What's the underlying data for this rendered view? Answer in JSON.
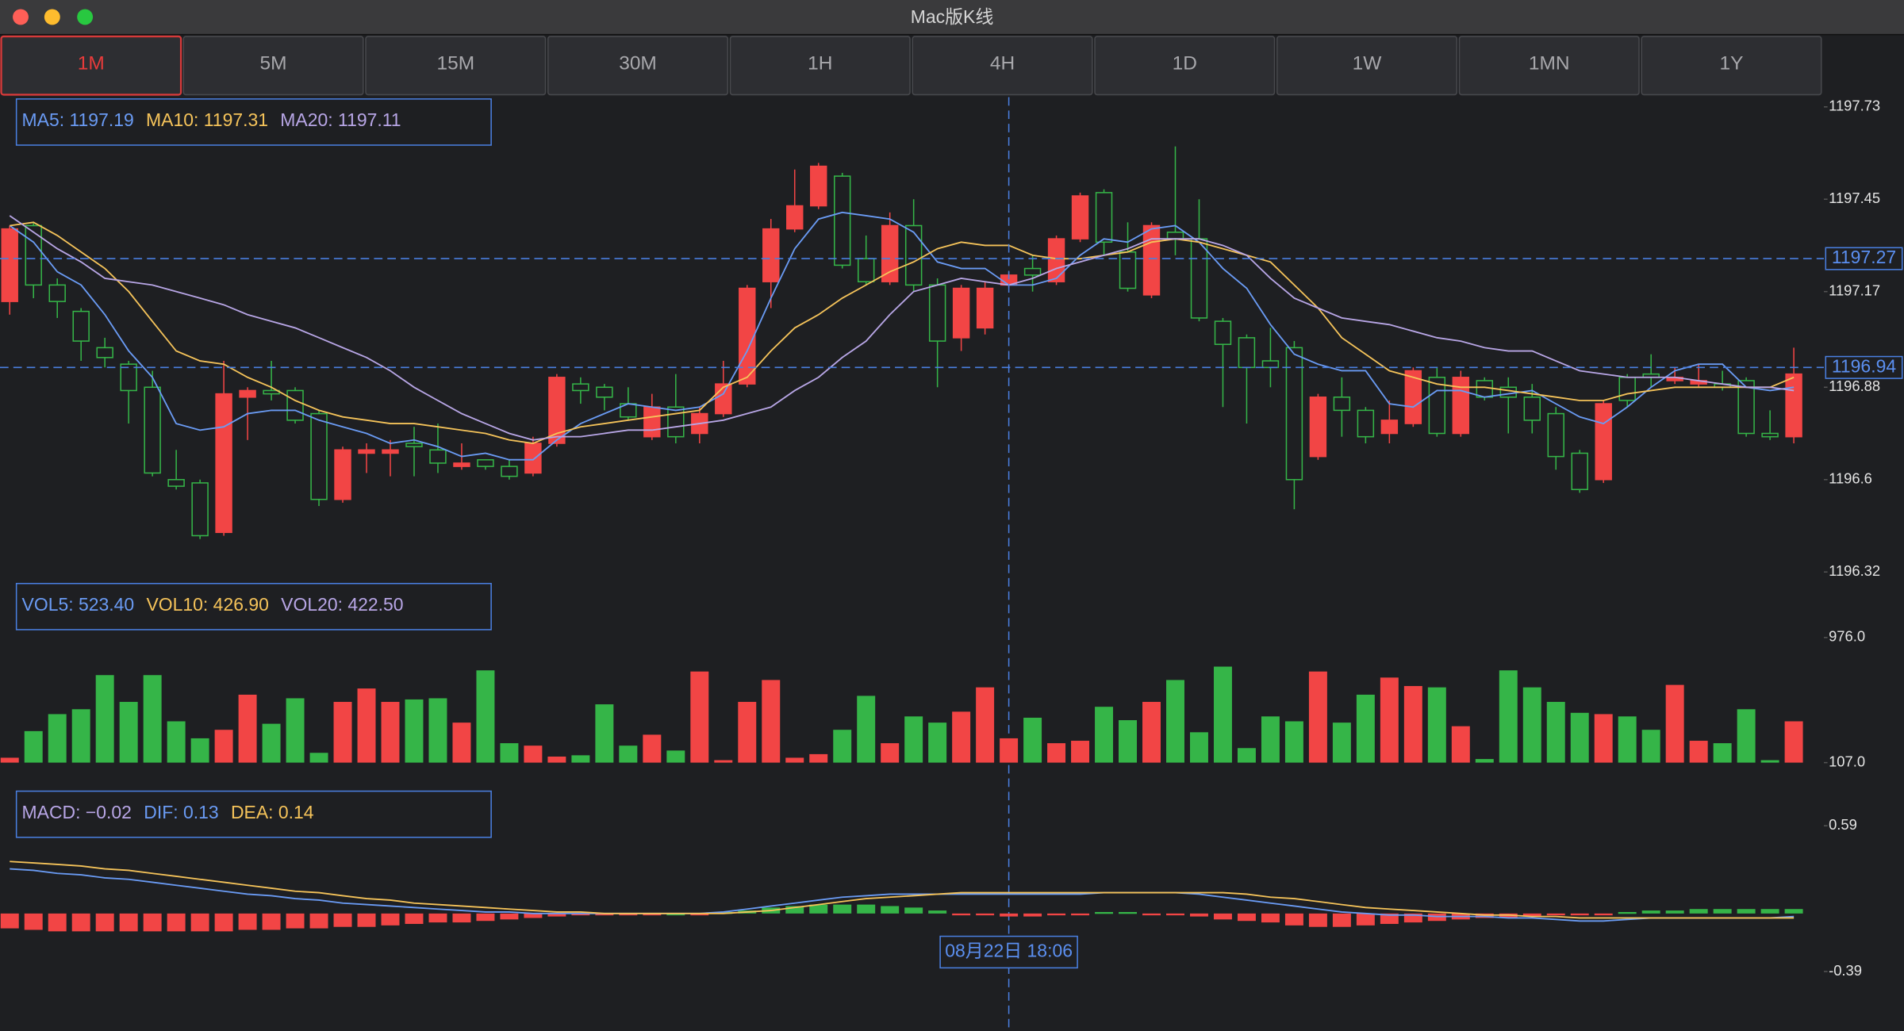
{
  "window": {
    "title": "Mac版K线"
  },
  "tabs": {
    "items": [
      "1M",
      "5M",
      "15M",
      "30M",
      "1H",
      "4H",
      "1D",
      "1W",
      "1MN",
      "1Y"
    ],
    "active": 0
  },
  "chart_data": [
    {
      "type": "candlestick",
      "categories": [
        null,
        null,
        null,
        null,
        null,
        null,
        null,
        null,
        null,
        null,
        null,
        null,
        null,
        null,
        null,
        null,
        null,
        null,
        null,
        null,
        null,
        null,
        null,
        null,
        null,
        null,
        null,
        null,
        null,
        null,
        null,
        null,
        null,
        null,
        null,
        null,
        null,
        null,
        null,
        null,
        null,
        null,
        "08月22日 18:06",
        null,
        null,
        null,
        null,
        null,
        null,
        null,
        null,
        null,
        null,
        null,
        null,
        null,
        null,
        null,
        null,
        null,
        null,
        null,
        null,
        null,
        null,
        null,
        null,
        null,
        null,
        null,
        null,
        null,
        null,
        null,
        null,
        null
      ],
      "open": [
        1197.14,
        1197.37,
        1197.19,
        1197.11,
        1197.0,
        1196.95,
        1196.88,
        1196.6,
        1196.59,
        1196.44,
        1196.85,
        1196.87,
        1196.87,
        1196.8,
        1196.54,
        1196.68,
        1196.68,
        1196.71,
        1196.69,
        1196.64,
        1196.66,
        1196.64,
        1196.62,
        1196.71,
        1196.89,
        1196.88,
        1196.83,
        1196.73,
        1196.82,
        1196.74,
        1196.8,
        1196.89,
        1197.2,
        1197.36,
        1197.43,
        1197.52,
        1197.27,
        1197.2,
        1197.37,
        1197.19,
        1197.03,
        1197.06,
        1197.19,
        1197.24,
        1197.2,
        1197.33,
        1197.47,
        1197.29,
        1197.16,
        1197.35,
        1197.33,
        1197.08,
        1197.03,
        1196.96,
        1197.0,
        1196.67,
        1196.85,
        1196.81,
        1196.74,
        1196.77,
        1196.91,
        1196.74,
        1196.9,
        1196.88,
        1196.85,
        1196.8,
        1196.68,
        1196.6,
        1196.91,
        1196.92,
        1196.9,
        1196.89,
        1196.89,
        1196.9,
        1196.74,
        1196.73
      ],
      "high": [
        1197.37,
        1197.38,
        1197.21,
        1197.12,
        1197.03,
        1196.96,
        1196.93,
        1196.69,
        1196.6,
        1196.96,
        1196.88,
        1196.96,
        1196.88,
        1196.81,
        1196.7,
        1196.71,
        1196.72,
        1196.76,
        1196.77,
        1196.71,
        1196.66,
        1196.66,
        1196.73,
        1196.92,
        1196.91,
        1196.89,
        1196.88,
        1196.86,
        1196.92,
        1196.82,
        1196.96,
        1197.19,
        1197.39,
        1197.54,
        1197.56,
        1197.53,
        1197.34,
        1197.41,
        1197.45,
        1197.21,
        1197.19,
        1197.2,
        1197.23,
        1197.28,
        1197.34,
        1197.47,
        1197.48,
        1197.38,
        1197.38,
        1197.61,
        1197.45,
        1197.09,
        1197.04,
        1197.06,
        1197.02,
        1196.86,
        1196.91,
        1196.82,
        1196.84,
        1196.94,
        1196.94,
        1196.93,
        1196.91,
        1196.91,
        1196.89,
        1196.82,
        1196.69,
        1196.84,
        1196.92,
        1196.98,
        1196.94,
        1196.95,
        1196.93,
        1196.91,
        1196.81,
        1197.0
      ],
      "low": [
        1197.1,
        1197.15,
        1197.09,
        1196.96,
        1196.94,
        1196.77,
        1196.61,
        1196.57,
        1196.42,
        1196.43,
        1196.72,
        1196.84,
        1196.77,
        1196.52,
        1196.53,
        1196.62,
        1196.61,
        1196.61,
        1196.62,
        1196.63,
        1196.63,
        1196.6,
        1196.61,
        1196.7,
        1196.83,
        1196.81,
        1196.78,
        1196.72,
        1196.71,
        1196.71,
        1196.79,
        1196.88,
        1197.12,
        1197.35,
        1197.42,
        1197.24,
        1197.19,
        1197.19,
        1197.17,
        1196.88,
        1196.99,
        1197.04,
        1197.18,
        1197.17,
        1197.19,
        1197.32,
        1197.28,
        1197.17,
        1197.15,
        1197.28,
        1197.08,
        1196.82,
        1196.77,
        1196.88,
        1196.51,
        1196.66,
        1196.73,
        1196.71,
        1196.71,
        1196.76,
        1196.73,
        1196.73,
        1196.84,
        1196.74,
        1196.74,
        1196.63,
        1196.56,
        1196.59,
        1196.82,
        1196.88,
        1196.89,
        1196.88,
        1196.87,
        1196.73,
        1196.72,
        1196.71
      ],
      "close": [
        1197.36,
        1197.19,
        1197.14,
        1197.02,
        1196.97,
        1196.87,
        1196.62,
        1196.58,
        1196.43,
        1196.86,
        1196.87,
        1196.86,
        1196.78,
        1196.54,
        1196.69,
        1196.69,
        1196.69,
        1196.7,
        1196.65,
        1196.65,
        1196.64,
        1196.61,
        1196.71,
        1196.91,
        1196.87,
        1196.85,
        1196.79,
        1196.82,
        1196.73,
        1196.8,
        1196.89,
        1197.18,
        1197.36,
        1197.43,
        1197.55,
        1197.25,
        1197.2,
        1197.37,
        1197.19,
        1197.02,
        1197.18,
        1197.18,
        1197.22,
        1197.22,
        1197.33,
        1197.46,
        1197.32,
        1197.18,
        1197.37,
        1197.33,
        1197.09,
        1197.01,
        1196.94,
        1196.94,
        1196.6,
        1196.85,
        1196.81,
        1196.73,
        1196.78,
        1196.93,
        1196.74,
        1196.91,
        1196.85,
        1196.85,
        1196.78,
        1196.67,
        1196.57,
        1196.83,
        1196.84,
        1196.91,
        1196.91,
        1196.9,
        1196.88,
        1196.74,
        1196.73,
        1196.92
      ],
      "up_color": "#f24545",
      "down_color": "#35b548",
      "lines": [
        {
          "color": "#6a9bf4",
          "values": [
            1197.37,
            1197.32,
            1197.23,
            1197.19,
            1197.1,
            1196.99,
            1196.91,
            1196.77,
            1196.75,
            1196.76,
            1196.8,
            1196.81,
            1196.81,
            1196.78,
            1196.76,
            1196.74,
            1196.71,
            1196.72,
            1196.7,
            1196.67,
            1196.68,
            1196.66,
            1196.66,
            1196.72,
            1196.77,
            1196.8,
            1196.83,
            1196.82,
            1196.81,
            1196.82,
            1196.86,
            1196.99,
            1197.15,
            1197.3,
            1197.39,
            1197.41,
            1197.4,
            1197.39,
            1197.35,
            1197.26,
            1197.24,
            1197.24,
            1197.19,
            1197.19,
            1197.21,
            1197.28,
            1197.33,
            1197.32,
            1197.36,
            1197.37,
            1197.32,
            1197.24,
            1197.18,
            1197.07,
            1196.98,
            1196.95,
            1196.93,
            1196.93,
            1196.83,
            1196.82,
            1196.87,
            1196.87,
            1196.85,
            1196.86,
            1196.87,
            1196.83,
            1196.79,
            1196.77,
            1196.82,
            1196.88,
            1196.93,
            1196.95,
            1196.95,
            1196.88,
            1196.87,
            1196.88
          ]
        },
        {
          "color": "#f5c35a",
          "values": [
            1197.37,
            1197.38,
            1197.34,
            1197.29,
            1197.24,
            1197.17,
            1197.08,
            1196.99,
            1196.96,
            1196.95,
            1196.91,
            1196.88,
            1196.84,
            1196.81,
            1196.79,
            1196.78,
            1196.77,
            1196.77,
            1196.76,
            1196.75,
            1196.74,
            1196.72,
            1196.71,
            1196.74,
            1196.76,
            1196.77,
            1196.78,
            1196.79,
            1196.8,
            1196.81,
            1196.88,
            1196.91,
            1196.99,
            1197.06,
            1197.1,
            1197.15,
            1197.19,
            1197.23,
            1197.26,
            1197.3,
            1197.32,
            1197.31,
            1197.31,
            1197.28,
            1197.27,
            1197.27,
            1197.28,
            1197.29,
            1197.32,
            1197.33,
            1197.32,
            1197.3,
            1197.28,
            1197.26,
            1197.19,
            1197.12,
            1197.03,
            1196.98,
            1196.93,
            1196.91,
            1196.89,
            1196.88,
            1196.88,
            1196.87,
            1196.86,
            1196.85,
            1196.84,
            1196.84,
            1196.86,
            1196.87,
            1196.88,
            1196.88,
            1196.88,
            1196.88,
            1196.88,
            1196.91
          ]
        },
        {
          "color": "#b8a6e6",
          "values": [
            1197.4,
            1197.35,
            1197.3,
            1197.26,
            1197.21,
            1197.2,
            1197.19,
            1197.17,
            1197.15,
            1197.13,
            1197.1,
            1197.08,
            1197.06,
            1197.03,
            1197.0,
            1196.97,
            1196.93,
            1196.88,
            1196.84,
            1196.8,
            1196.77,
            1196.74,
            1196.72,
            1196.73,
            1196.73,
            1196.74,
            1196.75,
            1196.75,
            1196.76,
            1196.77,
            1196.78,
            1196.8,
            1196.82,
            1196.87,
            1196.91,
            1196.97,
            1197.02,
            1197.1,
            1197.17,
            1197.19,
            1197.21,
            1197.2,
            1197.19,
            1197.21,
            1197.24,
            1197.26,
            1197.28,
            1197.3,
            1197.33,
            1197.33,
            1197.33,
            1197.31,
            1197.28,
            1197.21,
            1197.15,
            1197.12,
            1197.09,
            1197.08,
            1197.07,
            1197.05,
            1197.03,
            1197.02,
            1197.0,
            1196.99,
            1196.99,
            1196.96,
            1196.93,
            1196.92,
            1196.91,
            1196.91,
            1196.91,
            1196.9,
            1196.89,
            1196.88,
            1196.88,
            1196.87
          ]
        }
      ],
      "legend": [
        {
          "label": "MA5: 1197.19",
          "color": "#6a9bf4"
        },
        {
          "label": "MA10: 1197.31",
          "color": "#f5c35a"
        },
        {
          "label": "MA20: 1197.11",
          "color": "#b8a6e6"
        }
      ],
      "ylim": [
        1196.32,
        1197.73
      ],
      "yticks": [
        1196.32,
        1196.6,
        1196.88,
        1197.17,
        1197.45,
        1197.73
      ],
      "crosshair_price": 1197.27,
      "last_price": 1196.94
    },
    {
      "type": "volume",
      "values": [
        141,
        326,
        444,
        478,
        715,
        529,
        715,
        394,
        276,
        335,
        579,
        377,
        554,
        175,
        529,
        622,
        529,
        546,
        554,
        385,
        748,
        242,
        225,
        149,
        158,
        512,
        225,
        301,
        191,
        740,
        124,
        529,
        681,
        141,
        166,
        335,
        571,
        242,
        428,
        385,
        461,
        630,
        276,
        419,
        242,
        259,
        495,
        402,
        529,
        681,
        318,
        774,
        208,
        428,
        394,
        740,
        385,
        579,
        698,
        639,
        630,
        360,
        132,
        748,
        630,
        529,
        453,
        444,
        428,
        335,
        647,
        259,
        242,
        478,
        124,
        394
      ],
      "legend": [
        {
          "label": "VOL5: 523.40",
          "color": "#6a9bf4"
        },
        {
          "label": "VOL10: 426.90",
          "color": "#f5c35a"
        },
        {
          "label": "VOL20: 422.50",
          "color": "#b8a6e6"
        }
      ],
      "ylim": [
        107,
        976
      ],
      "yticks": [
        {
          "value": 107,
          "label": "107.0"
        },
        {
          "value": 976,
          "label": "976.0"
        }
      ]
    },
    {
      "type": "macd",
      "values": [
        -0.1,
        -0.11,
        -0.12,
        -0.12,
        -0.12,
        -0.12,
        -0.12,
        -0.12,
        -0.12,
        -0.12,
        -0.11,
        -0.11,
        -0.1,
        -0.1,
        -0.09,
        -0.09,
        -0.08,
        -0.07,
        -0.06,
        -0.06,
        -0.05,
        -0.04,
        -0.03,
        -0.02,
        -0.01,
        -0.01,
        -0.01,
        -0.01,
        0.0,
        -0.01,
        0.01,
        0.02,
        0.04,
        0.05,
        0.06,
        0.06,
        0.06,
        0.05,
        0.04,
        0.02,
        -0.01,
        -0.01,
        -0.02,
        -0.02,
        -0.01,
        -0.01,
        0.01,
        0.01,
        -0.01,
        -0.01,
        -0.02,
        -0.04,
        -0.05,
        -0.06,
        -0.08,
        -0.09,
        -0.09,
        -0.08,
        -0.07,
        -0.06,
        -0.05,
        -0.04,
        -0.03,
        -0.03,
        -0.02,
        -0.01,
        -0.01,
        -0.01,
        0.01,
        0.02,
        0.02,
        0.03,
        0.03,
        0.03,
        0.03,
        0.03
      ],
      "positive_color": "#35b548",
      "negative_color": "#f24545",
      "lines": [
        {
          "color": "#6a9bf4",
          "values": [
            0.3,
            0.29,
            0.27,
            0.26,
            0.24,
            0.23,
            0.21,
            0.19,
            0.17,
            0.15,
            0.13,
            0.12,
            0.1,
            0.09,
            0.07,
            0.06,
            0.05,
            0.04,
            0.03,
            0.02,
            0.01,
            0.01,
            0.0,
            0.0,
            0.0,
            0.0,
            0.0,
            0.0,
            0.0,
            0.0,
            0.01,
            0.03,
            0.05,
            0.07,
            0.09,
            0.11,
            0.12,
            0.13,
            0.13,
            0.13,
            0.13,
            0.13,
            0.13,
            0.13,
            0.13,
            0.13,
            0.14,
            0.14,
            0.14,
            0.14,
            0.13,
            0.11,
            0.09,
            0.07,
            0.05,
            0.03,
            0.01,
            0.0,
            -0.01,
            -0.01,
            -0.02,
            -0.02,
            -0.02,
            -0.03,
            -0.03,
            -0.04,
            -0.05,
            -0.05,
            -0.04,
            -0.03,
            -0.03,
            -0.03,
            -0.03,
            -0.03,
            -0.03,
            -0.02
          ]
        },
        {
          "color": "#f5c35a",
          "values": [
            0.35,
            0.34,
            0.33,
            0.32,
            0.3,
            0.29,
            0.27,
            0.25,
            0.23,
            0.21,
            0.19,
            0.17,
            0.15,
            0.14,
            0.12,
            0.1,
            0.09,
            0.07,
            0.06,
            0.05,
            0.04,
            0.03,
            0.02,
            0.01,
            0.01,
            0.0,
            0.0,
            0.0,
            0.0,
            0.0,
            0.0,
            0.01,
            0.02,
            0.04,
            0.06,
            0.08,
            0.1,
            0.11,
            0.12,
            0.13,
            0.14,
            0.14,
            0.14,
            0.14,
            0.14,
            0.14,
            0.14,
            0.14,
            0.14,
            0.14,
            0.14,
            0.14,
            0.13,
            0.11,
            0.1,
            0.08,
            0.06,
            0.04,
            0.03,
            0.02,
            0.01,
            0.0,
            -0.01,
            -0.01,
            -0.02,
            -0.02,
            -0.03,
            -0.03,
            -0.03,
            -0.03,
            -0.03,
            -0.03,
            -0.03,
            -0.03,
            -0.03,
            -0.03
          ]
        }
      ],
      "legend": [
        {
          "label": "MACD: −0.02",
          "color": "#b8a6e6"
        },
        {
          "label": "DIF: 0.13",
          "color": "#6a9bf4"
        },
        {
          "label": "DEA: 0.14",
          "color": "#f5c35a"
        }
      ],
      "ylim": [
        -0.39,
        0.59
      ],
      "yticks": [
        -0.39,
        0.59
      ]
    }
  ]
}
